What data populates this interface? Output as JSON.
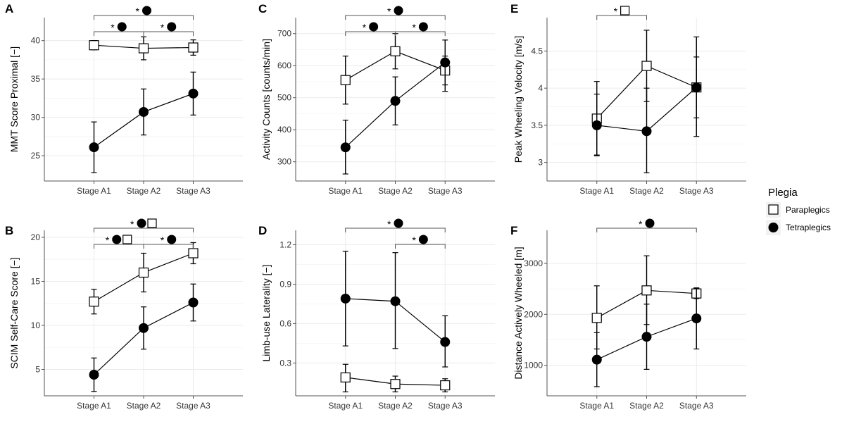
{
  "chart_data": [
    {
      "panel": "A",
      "type": "line",
      "ylabel": "MMT Score Proximal [−]",
      "categories": [
        "Stage A1",
        "Stage A2",
        "Stage A3"
      ],
      "ylim": [
        21.7,
        43.0
      ],
      "yticks": [
        25,
        30,
        35,
        40
      ],
      "series": [
        {
          "name": "Paraplegics",
          "values": [
            39.4,
            39.0,
            39.1
          ],
          "err_low": [
            38.8,
            37.5,
            38.1
          ],
          "err_high": [
            40.0,
            40.5,
            40.1
          ]
        },
        {
          "name": "Tetraplegics",
          "values": [
            26.1,
            30.7,
            33.1
          ],
          "err_low": [
            22.8,
            27.7,
            30.3
          ],
          "err_high": [
            29.4,
            33.7,
            35.9
          ]
        }
      ],
      "significance": [
        {
          "from": "Stage A1",
          "to": "Stage A3",
          "level": 0,
          "label": "*",
          "symbols": [
            "filled-circle"
          ]
        },
        {
          "from": "Stage A1",
          "to": "Stage A2",
          "level": 1,
          "label": "*",
          "symbols": [
            "filled-circle"
          ]
        },
        {
          "from": "Stage A2",
          "to": "Stage A3",
          "level": 1,
          "label": "*",
          "symbols": [
            "filled-circle"
          ]
        }
      ]
    },
    {
      "panel": "C",
      "type": "line",
      "ylabel": "Activity Counts [counts/min]",
      "categories": [
        "Stage A1",
        "Stage A2",
        "Stage A3"
      ],
      "ylim": [
        240,
        750
      ],
      "yticks": [
        300,
        400,
        500,
        600,
        700
      ],
      "series": [
        {
          "name": "Paraplegics",
          "values": [
            555,
            645,
            585
          ],
          "err_low": [
            480,
            590,
            540
          ],
          "err_high": [
            630,
            700,
            630
          ]
        },
        {
          "name": "Tetraplegics",
          "values": [
            345,
            490,
            610
          ],
          "err_low": [
            262,
            415,
            520
          ],
          "err_high": [
            430,
            565,
            680
          ]
        }
      ],
      "significance": [
        {
          "from": "Stage A1",
          "to": "Stage A3",
          "level": 0,
          "label": "*",
          "symbols": [
            "filled-circle"
          ]
        },
        {
          "from": "Stage A1",
          "to": "Stage A2",
          "level": 1,
          "label": "*",
          "symbols": [
            "filled-circle"
          ]
        },
        {
          "from": "Stage A2",
          "to": "Stage A3",
          "level": 1,
          "label": "*",
          "symbols": [
            "filled-circle"
          ]
        }
      ]
    },
    {
      "panel": "E",
      "type": "line",
      "ylabel": "Peak Wheeling Velocity [m/s]",
      "categories": [
        "Stage A1",
        "Stage A2",
        "Stage A3"
      ],
      "ylim": [
        2.75,
        4.95
      ],
      "yticks": [
        3.0,
        3.5,
        4.0,
        4.5
      ],
      "series": [
        {
          "name": "Paraplegics",
          "values": [
            3.59,
            4.3,
            4.01
          ],
          "err_low": [
            3.1,
            3.82,
            3.6
          ],
          "err_high": [
            4.09,
            4.78,
            4.42
          ]
        },
        {
          "name": "Tetraplegics",
          "values": [
            3.5,
            3.42,
            4.01
          ],
          "err_low": [
            3.09,
            2.86,
            3.35
          ],
          "err_high": [
            3.92,
            4.0,
            4.69
          ]
        }
      ],
      "significance": [
        {
          "from": "Stage A1",
          "to": "Stage A2",
          "level": 0,
          "label": "*",
          "symbols": [
            "open-square"
          ]
        }
      ]
    },
    {
      "panel": "B",
      "type": "line",
      "ylabel": "SCIM Self-Care Score [−]",
      "categories": [
        "Stage A1",
        "Stage A2",
        "Stage A3"
      ],
      "ylim": [
        2.0,
        20.8
      ],
      "yticks": [
        5,
        10,
        15,
        20
      ],
      "series": [
        {
          "name": "Paraplegics",
          "values": [
            12.7,
            16.0,
            18.2
          ],
          "err_low": [
            11.3,
            13.8,
            17.0
          ],
          "err_high": [
            14.1,
            18.2,
            19.4
          ]
        },
        {
          "name": "Tetraplegics",
          "values": [
            4.4,
            9.7,
            12.6
          ],
          "err_low": [
            2.5,
            7.3,
            10.5
          ],
          "err_high": [
            6.3,
            12.1,
            14.7
          ]
        }
      ],
      "significance": [
        {
          "from": "Stage A1",
          "to": "Stage A3",
          "level": 0,
          "label": "*",
          "symbols": [
            "filled-circle",
            "open-square"
          ]
        },
        {
          "from": "Stage A1",
          "to": "Stage A2",
          "level": 1,
          "label": "*",
          "symbols": [
            "filled-circle",
            "open-square"
          ]
        },
        {
          "from": "Stage A2",
          "to": "Stage A3",
          "level": 1,
          "label": "*",
          "symbols": [
            "filled-circle"
          ]
        }
      ]
    },
    {
      "panel": "D",
      "type": "line",
      "ylabel": "Limb-use Laterality [−]",
      "categories": [
        "Stage A1",
        "Stage A2",
        "Stage A3"
      ],
      "ylim": [
        0.05,
        1.31
      ],
      "yticks": [
        0.3,
        0.6,
        0.9,
        1.2
      ],
      "yticklabels": [
        "0.3",
        "0.6",
        "0.9",
        "1.2"
      ],
      "series": [
        {
          "name": "Paraplegics",
          "values": [
            0.19,
            0.14,
            0.13
          ],
          "err_low": [
            0.08,
            0.08,
            0.08
          ],
          "err_high": [
            0.29,
            0.2,
            0.18
          ]
        },
        {
          "name": "Tetraplegics",
          "values": [
            0.79,
            0.77,
            0.46
          ],
          "err_low": [
            0.43,
            0.41,
            0.27
          ],
          "err_high": [
            1.15,
            1.14,
            0.66
          ]
        }
      ],
      "significance": [
        {
          "from": "Stage A1",
          "to": "Stage A3",
          "level": 0,
          "label": "*",
          "symbols": [
            "filled-circle"
          ]
        },
        {
          "from": "Stage A2",
          "to": "Stage A3",
          "level": 1,
          "label": "*",
          "symbols": [
            "filled-circle"
          ]
        }
      ]
    },
    {
      "panel": "F",
      "type": "line",
      "ylabel": "Distance Actively Wheeled [m]",
      "categories": [
        "Stage A1",
        "Stage A2",
        "Stage A3"
      ],
      "ylim": [
        400,
        3650
      ],
      "yticks": [
        1000,
        2000,
        3000
      ],
      "series": [
        {
          "name": "Paraplegics",
          "values": [
            1930,
            2470,
            2410
          ],
          "err_low": [
            1320,
            1800,
            2310
          ],
          "err_high": [
            2560,
            3150,
            2510
          ]
        },
        {
          "name": "Tetraplegics",
          "values": [
            1110,
            1560,
            1920
          ],
          "err_low": [
            580,
            920,
            1320
          ],
          "err_high": [
            1640,
            2200,
            2520
          ]
        }
      ],
      "significance": [
        {
          "from": "Stage A1",
          "to": "Stage A3",
          "level": 0,
          "label": "*",
          "symbols": [
            "filled-circle"
          ]
        }
      ]
    }
  ],
  "legend": {
    "title": "Plegia",
    "items": [
      {
        "label": "Paraplegics",
        "marker": "open-square"
      },
      {
        "label": "Tetraplegics",
        "marker": "filled-circle"
      }
    ],
    "position": "right"
  },
  "colors": {
    "line": "#000000",
    "grid": "#ebebeb",
    "marker_fill_open": "#ffffff",
    "marker_fill_filled": "#000000"
  }
}
